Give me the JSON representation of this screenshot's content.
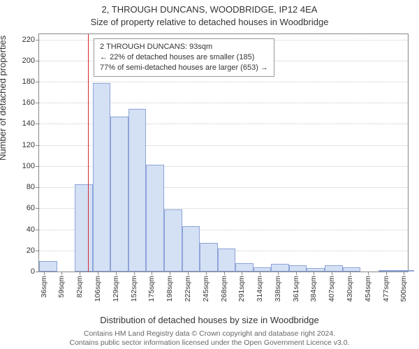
{
  "title_main": "2, THROUGH DUNCANS, WOODBRIDGE, IP12 4EA",
  "subtitle": "Size of property relative to detached houses in Woodbridge",
  "y_axis_label": "Number of detached properties",
  "x_axis_label": "Distribution of detached houses by size in Woodbridge",
  "footer_line1": "Contains HM Land Registry data © Crown copyright and database right 2024.",
  "footer_line2": "Contains public sector information licensed under the Open Government Licence v3.0.",
  "legend": {
    "line1": "2 THROUGH DUNCANS: 93sqm",
    "line2": "← 22% of detached houses are smaller (185)",
    "line3": "77% of semi-detached houses are larger (653) →"
  },
  "chart": {
    "type": "histogram",
    "y_max": 225,
    "y_ticks": [
      0,
      20,
      40,
      60,
      80,
      100,
      120,
      140,
      160,
      180,
      200,
      220
    ],
    "x_min": 30,
    "x_max": 505,
    "x_ticks": [
      36,
      59,
      82,
      106,
      129,
      152,
      175,
      198,
      222,
      245,
      268,
      291,
      314,
      338,
      361,
      384,
      407,
      430,
      454,
      477,
      500
    ],
    "x_tick_unit": "sqm",
    "bar_fill": "#d4e0f4",
    "bar_stroke": "#8ca4d8",
    "grid_color": "#c8c8c8",
    "axis_color": "#888888",
    "marker_color": "#d62a2a",
    "title_fontsize": 13,
    "label_fontsize": 13,
    "tick_fontsize": 11,
    "bar_bin_width": 23,
    "bars": [
      {
        "x_start": 30,
        "count": 10
      },
      {
        "x_start": 53,
        "count": 0
      },
      {
        "x_start": 76,
        "count": 83
      },
      {
        "x_start": 99,
        "count": 179
      },
      {
        "x_start": 122,
        "count": 147
      },
      {
        "x_start": 145,
        "count": 154
      },
      {
        "x_start": 168,
        "count": 101
      },
      {
        "x_start": 191,
        "count": 59
      },
      {
        "x_start": 214,
        "count": 43
      },
      {
        "x_start": 237,
        "count": 27
      },
      {
        "x_start": 260,
        "count": 22
      },
      {
        "x_start": 283,
        "count": 8
      },
      {
        "x_start": 306,
        "count": 4
      },
      {
        "x_start": 329,
        "count": 7
      },
      {
        "x_start": 352,
        "count": 6
      },
      {
        "x_start": 375,
        "count": 3
      },
      {
        "x_start": 398,
        "count": 6
      },
      {
        "x_start": 421,
        "count": 4
      },
      {
        "x_start": 444,
        "count": 0
      },
      {
        "x_start": 467,
        "count": 1
      },
      {
        "x_start": 490,
        "count": 1
      }
    ],
    "marker_x": 93
  }
}
